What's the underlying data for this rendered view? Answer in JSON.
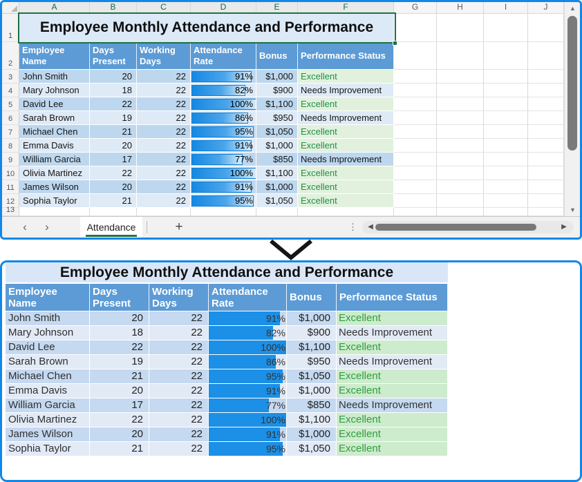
{
  "table": {
    "title": "Employee Monthly Attendance and Performance",
    "headers_top": [
      [
        "Employee",
        "Name"
      ],
      [
        "Days",
        "Present"
      ],
      [
        "Working",
        "Days"
      ],
      [
        "Attendance",
        "Rate"
      ],
      [
        "Bonus"
      ],
      [
        "Performance Status"
      ]
    ],
    "headers_bottom": [
      [
        "Employee Name"
      ],
      [
        "Days",
        "Present"
      ],
      [
        "Working",
        "Days"
      ],
      [
        "Attendance",
        "Rate"
      ],
      [
        "Bonus"
      ],
      [
        "Performance Status"
      ]
    ],
    "status_excellent": "Excellent",
    "rows": [
      {
        "name": "John Smith",
        "days_present": "20",
        "working_days": "22",
        "rate_pct": 91,
        "rate_label": "91%",
        "bonus": "$1,000",
        "status": "Excellent"
      },
      {
        "name": "Mary Johnson",
        "days_present": "18",
        "working_days": "22",
        "rate_pct": 82,
        "rate_label": "82%",
        "bonus": "$900",
        "status": "Needs Improvement"
      },
      {
        "name": "David Lee",
        "days_present": "22",
        "working_days": "22",
        "rate_pct": 100,
        "rate_label": "100%",
        "bonus": "$1,100",
        "status": "Excellent"
      },
      {
        "name": "Sarah Brown",
        "days_present": "19",
        "working_days": "22",
        "rate_pct": 86,
        "rate_label": "86%",
        "bonus": "$950",
        "status": "Needs Improvement"
      },
      {
        "name": "Michael Chen",
        "days_present": "21",
        "working_days": "22",
        "rate_pct": 95,
        "rate_label": "95%",
        "bonus": "$1,050",
        "status": "Excellent"
      },
      {
        "name": "Emma Davis",
        "days_present": "20",
        "working_days": "22",
        "rate_pct": 91,
        "rate_label": "91%",
        "bonus": "$1,000",
        "status": "Excellent"
      },
      {
        "name": "William Garcia",
        "days_present": "17",
        "working_days": "22",
        "rate_pct": 77,
        "rate_label": "77%",
        "bonus": "$850",
        "status": "Needs Improvement"
      },
      {
        "name": "Olivia Martinez",
        "days_present": "22",
        "working_days": "22",
        "rate_pct": 100,
        "rate_label": "100%",
        "bonus": "$1,100",
        "status": "Excellent"
      },
      {
        "name": "James Wilson",
        "days_present": "20",
        "working_days": "22",
        "rate_pct": 91,
        "rate_label": "91%",
        "bonus": "$1,000",
        "status": "Excellent"
      },
      {
        "name": "Sophia Taylor",
        "days_present": "21",
        "working_days": "22",
        "rate_pct": 95,
        "rate_label": "95%",
        "bonus": "$1,050",
        "status": "Excellent"
      }
    ]
  },
  "excel": {
    "column_headers": [
      "A",
      "B",
      "C",
      "D",
      "E",
      "F",
      "G",
      "H",
      "I",
      "J"
    ],
    "selected_column_count": 6,
    "row_numbers": [
      "1",
      "2",
      "3",
      "4",
      "5",
      "6",
      "7",
      "8",
      "9",
      "10",
      "11",
      "12",
      "13"
    ],
    "sheet_bar": {
      "prev_sheet_icon": "‹",
      "next_sheet_icon": "›",
      "active_tab": "Attendance",
      "add_sheet_icon": "+",
      "splitter_icon": "⋮"
    },
    "scrollbars": {
      "up_icon": "▲",
      "down_icon": "▼",
      "left_icon": "◀",
      "right_icon": "▶"
    }
  },
  "colors": {
    "panel_border": "#1287e8",
    "header_blue": "#5c9bd5",
    "band_dark_top": "#bdd7ee",
    "band_light_top": "#deeaf6",
    "band_dark_bottom": "#c5d9f0",
    "band_light_bottom": "#e2eaf6",
    "title_fill_top": "#dce9f7",
    "title_fill_bottom": "#d9e6f7",
    "excellent_bg_top": "#e2f1de",
    "excellent_text_top": "#1f8f44",
    "excellent_bg_bottom": "#cdebcd",
    "excellent_text_bottom": "#2e9e3e",
    "data_bar_blue": "#1c8fe6",
    "selection_green": "#1b7145",
    "sheet_tab_underline": "#217346"
  }
}
